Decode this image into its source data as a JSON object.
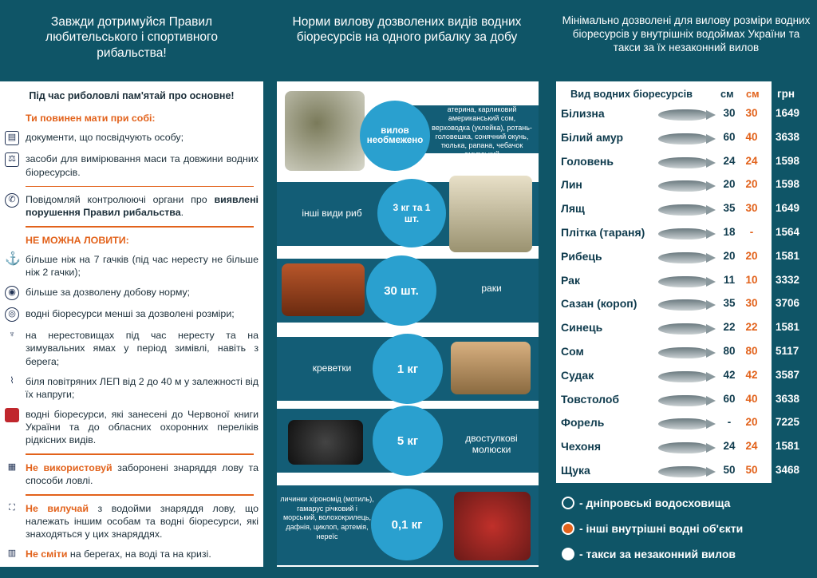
{
  "headers": {
    "left": "Завжди дотримуйся Правил любительського і спортивного рибальства!",
    "middle": "Норми вилову дозволених видів водних біоресурсів на одного рибалку за добу",
    "right": "Мінімально дозволені для вилову розміри водних біоресурсів у внутрішніх водоймах України та такси за їх незаконний вилов"
  },
  "left_panel": {
    "title": "Під час риболовлі пам'ятай про основне!",
    "must_have_label": "Ти повинен мати при собі:",
    "item_documents": "документи, що посвідчують особу;",
    "item_tools": "засоби для вимірювання маси та довжини водних біоресурсів.",
    "report_prefix": "Повідомляй контролюючі органи про ",
    "report_bold": "виявлені порушення Правил рибальства",
    "report_suffix": ".",
    "forbidden_label": "НЕ МОЖНА ЛОВИТИ:",
    "forbidden_1": "більше ніж на 7 гачків (під час нересту не більше ніж 2 гачки);",
    "forbidden_2": "більше за дозволену добову норму;",
    "forbidden_3": "водні біоресурси менші за дозволені розміри;",
    "forbidden_4": "на нерестовищах під час нересту та на зимувальних ямах у період зимівлі, навіть з берега;",
    "forbidden_5": "біля повітряних ЛЕП від 2 до 40 м у залежності від їх напруги;",
    "forbidden_6": "водні біоресурси, які занесені до Червоної книги України та до обласних охоронних переліків рідкісних видів.",
    "no_use_bold": "Не використовуй",
    "no_use_text": " заборонені знаряддя лову та способи ловлі.",
    "no_take_bold": "Не вилучай",
    "no_take_text": " з водойми знаряддя лову, що належать іншим особам та водні біоресурси, які знаходяться у цих знаряддях.",
    "no_litter_bold": "Не сміти",
    "no_litter_text": " на берегах, на воді та на кризі."
  },
  "norms": [
    {
      "amount": "вилов необмежено",
      "label": "атерина, карликовий американський сом, верховодка (уклейка), ротань-головешка, сонячний окунь, тюлька, рапана, чебачок амурський"
    },
    {
      "amount": "3 кг та 1 шт.",
      "label": "інші види риб"
    },
    {
      "amount": "30 шт.",
      "label": "раки"
    },
    {
      "amount": "1 кг",
      "label": "креветки"
    },
    {
      "amount": "5 кг",
      "label": "двостулкові молюски"
    },
    {
      "amount": "0,1 кг",
      "label": "личинки хірономід (мотиль), гамарус річковий і морський, волохокрилець, дафнія, циклоп, артемія, нереїс"
    }
  ],
  "table": {
    "col_species": "Вид водних біоресурсів",
    "col_cm1": "см",
    "col_cm2": "см",
    "col_uah": "грн",
    "rows": [
      {
        "name": "Білизна",
        "cm1": "30",
        "cm2": "30",
        "uah": "1649"
      },
      {
        "name": "Білий амур",
        "cm1": "60",
        "cm2": "40",
        "uah": "3638"
      },
      {
        "name": "Головень",
        "cm1": "24",
        "cm2": "24",
        "uah": "1598"
      },
      {
        "name": "Лин",
        "cm1": "20",
        "cm2": "20",
        "uah": "1598"
      },
      {
        "name": "Лящ",
        "cm1": "35",
        "cm2": "30",
        "uah": "1649"
      },
      {
        "name": "Плітка (тараня)",
        "cm1": "18",
        "cm2": "-",
        "uah": "1564"
      },
      {
        "name": "Рибець",
        "cm1": "20",
        "cm2": "20",
        "uah": "1581"
      },
      {
        "name": "Рак",
        "cm1": "11",
        "cm2": "10",
        "uah": "3332"
      },
      {
        "name": "Сазан (короп)",
        "cm1": "35",
        "cm2": "30",
        "uah": "3706"
      },
      {
        "name": "Синець",
        "cm1": "22",
        "cm2": "22",
        "uah": "1581"
      },
      {
        "name": "Сом",
        "cm1": "80",
        "cm2": "80",
        "uah": "5117"
      },
      {
        "name": "Судак",
        "cm1": "42",
        "cm2": "42",
        "uah": "3587"
      },
      {
        "name": "Товстолоб",
        "cm1": "60",
        "cm2": "40",
        "uah": "3638"
      },
      {
        "name": "Форель",
        "cm1": "-",
        "cm2": "20",
        "uah": "7225"
      },
      {
        "name": "Чехоня",
        "cm1": "24",
        "cm2": "24",
        "uah": "1581"
      },
      {
        "name": "Щука",
        "cm1": "50",
        "cm2": "50",
        "uah": "3468"
      }
    ]
  },
  "legend": [
    {
      "color": "#0f5567",
      "border": "#ffffff",
      "text": "- дніпровські водосховища"
    },
    {
      "color": "#e2621b",
      "border": "#ffffff",
      "text": "- інші внутрішні водні об'єкти"
    },
    {
      "color": "#ffffff",
      "border": "#ffffff",
      "text": "- такси за незаконний вилов"
    }
  ]
}
